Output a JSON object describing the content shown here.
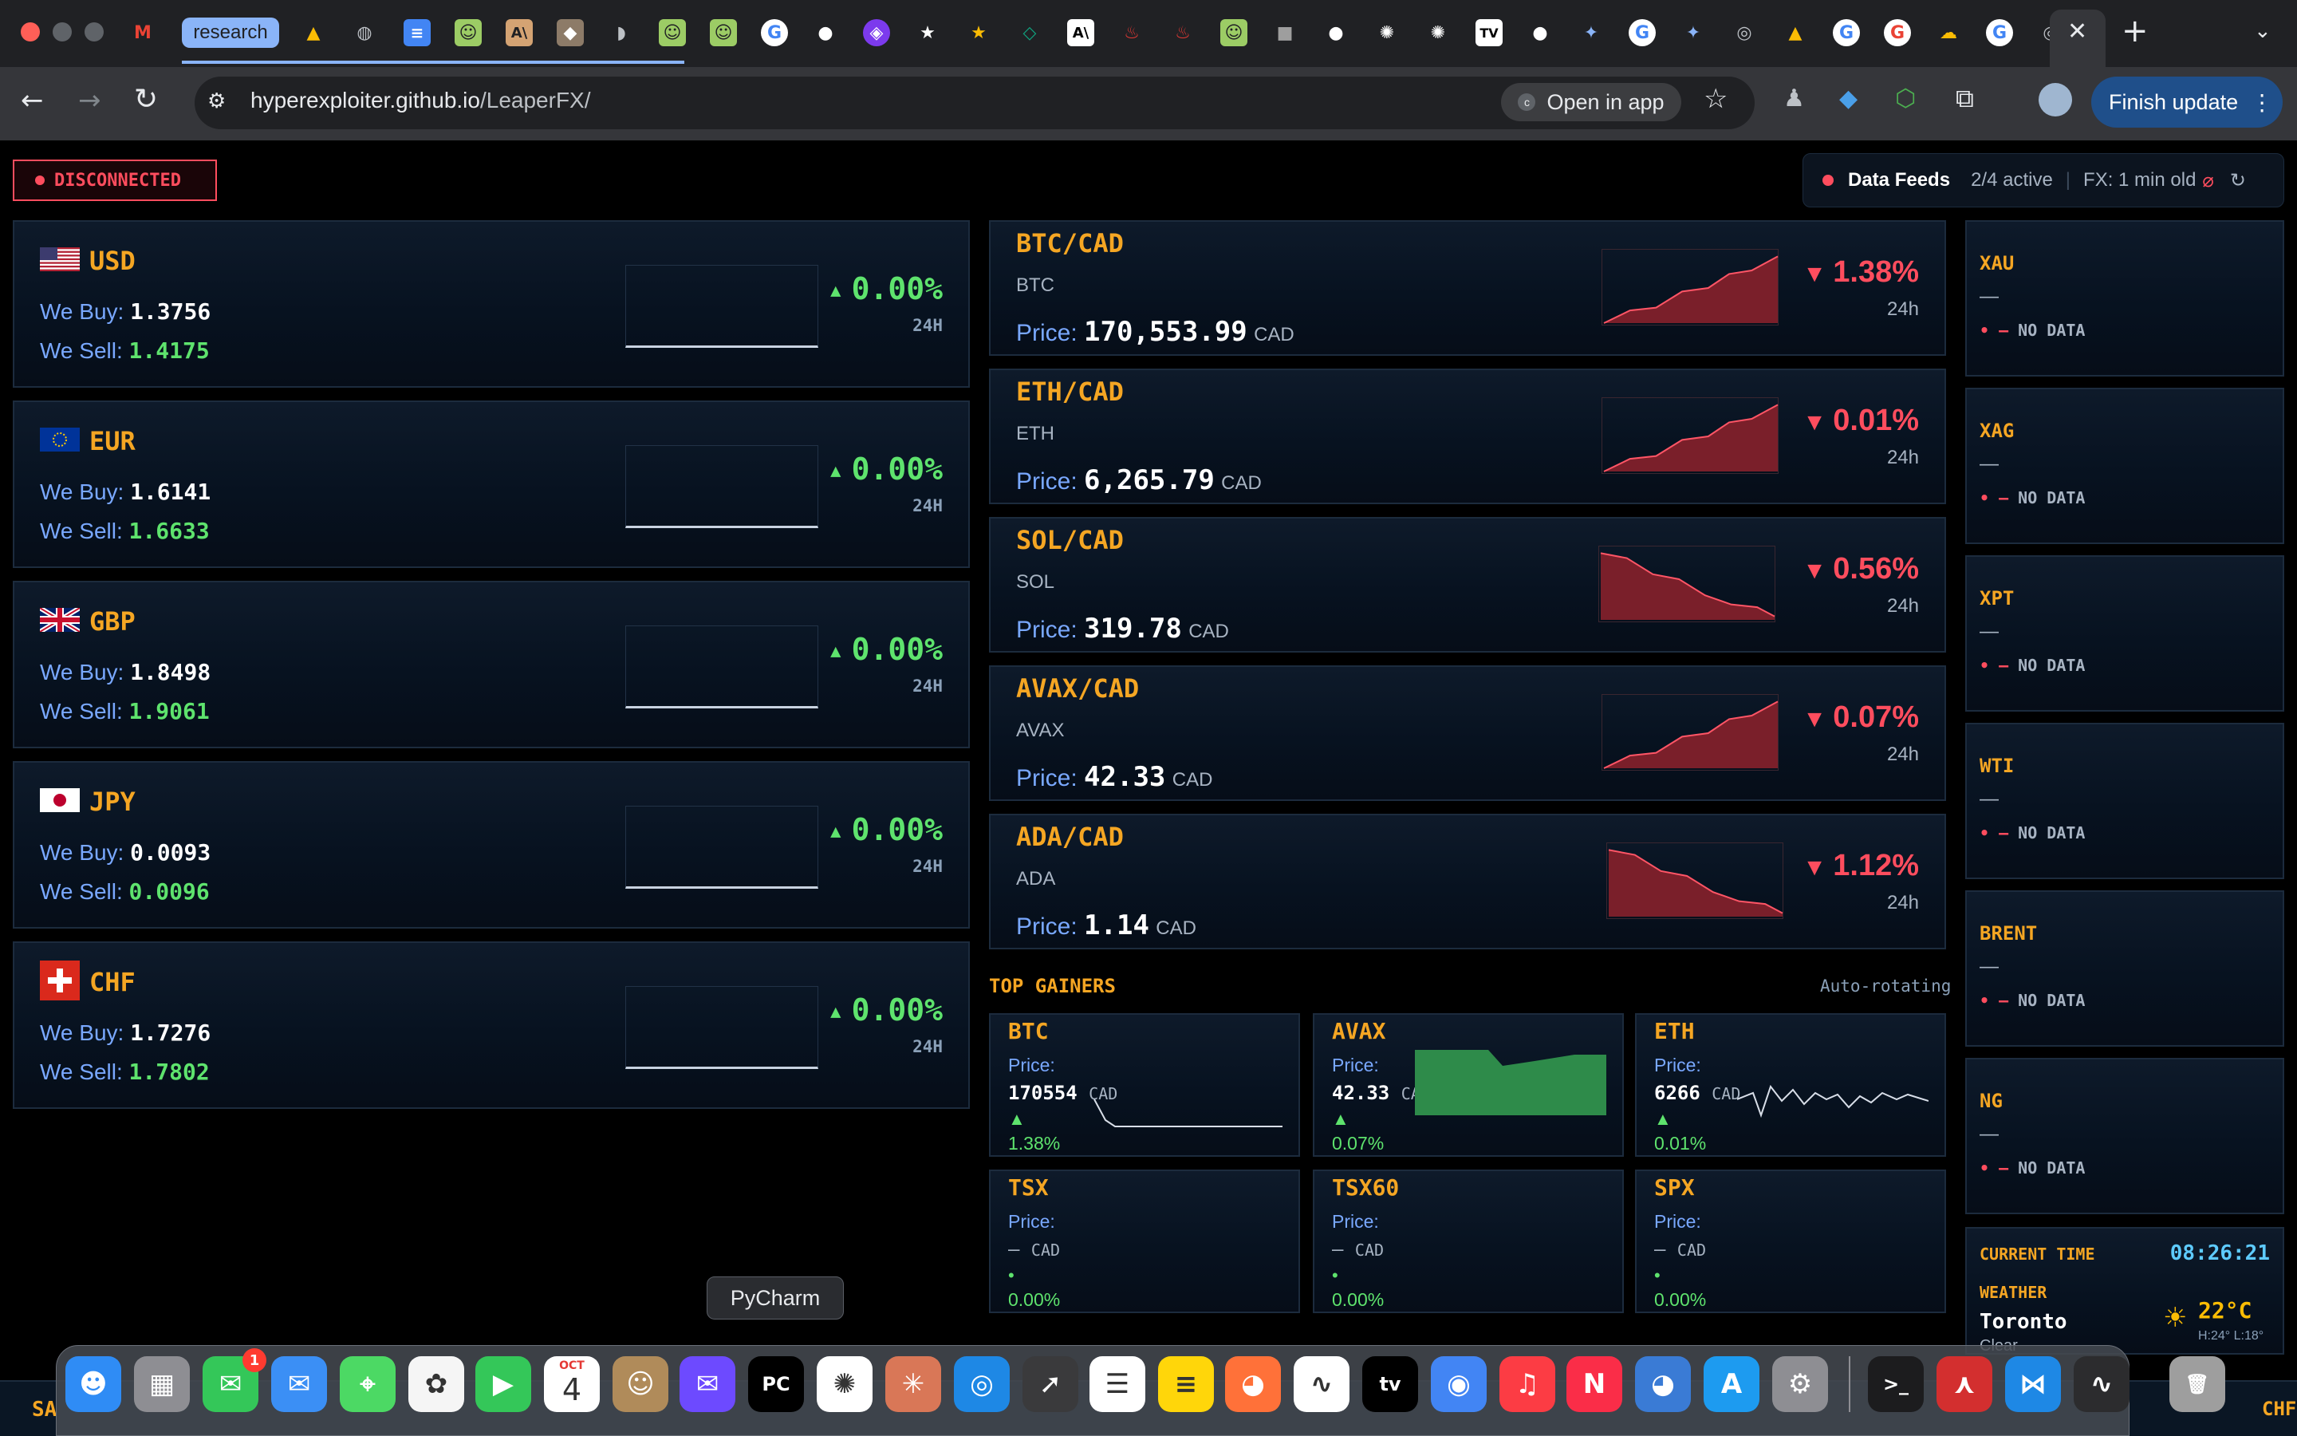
{
  "browser": {
    "tab_group_label": "research",
    "url_host": "hyperexploiter.github.io",
    "url_path": "/LeaperFX/",
    "open_in_app": "Open in app",
    "finish_update": "Finish update"
  },
  "app": {
    "status_badge": "DISCONNECTED",
    "feeds": {
      "label": "Data Feeds",
      "active": "2/4 active",
      "fx_age": "FX: 1 min old"
    },
    "currencies": [
      {
        "code": "USD",
        "buy_label": "We Buy:",
        "buy": "1.3756",
        "sell_label": "We Sell:",
        "sell": "1.4175",
        "change": "0.00%",
        "period": "24H"
      },
      {
        "code": "EUR",
        "buy_label": "We Buy:",
        "buy": "1.6141",
        "sell_label": "We Sell:",
        "sell": "1.6633",
        "change": "0.00%",
        "period": "24H"
      },
      {
        "code": "GBP",
        "buy_label": "We Buy:",
        "buy": "1.8498",
        "sell_label": "We Sell:",
        "sell": "1.9061",
        "change": "0.00%",
        "period": "24H"
      },
      {
        "code": "JPY",
        "buy_label": "We Buy:",
        "buy": "0.0093",
        "sell_label": "We Sell:",
        "sell": "0.0096",
        "change": "0.00%",
        "period": "24H"
      },
      {
        "code": "CHF",
        "buy_label": "We Buy:",
        "buy": "1.7276",
        "sell_label": "We Sell:",
        "sell": "1.7802",
        "change": "0.00%",
        "period": "24H"
      }
    ],
    "crypto": [
      {
        "pair": "BTC/CAD",
        "symbol": "BTC",
        "price_label": "Price:",
        "price": "170,553.99",
        "unit": "CAD",
        "change": "1.38%",
        "period": "24h",
        "trend": "up"
      },
      {
        "pair": "ETH/CAD",
        "symbol": "ETH",
        "price_label": "Price:",
        "price": "6,265.79",
        "unit": "CAD",
        "change": "0.01%",
        "period": "24h",
        "trend": "up"
      },
      {
        "pair": "SOL/CAD",
        "symbol": "SOL",
        "price_label": "Price:",
        "price": "319.78",
        "unit": "CAD",
        "change": "0.56%",
        "period": "24h",
        "trend": "down"
      },
      {
        "pair": "AVAX/CAD",
        "symbol": "AVAX",
        "price_label": "Price:",
        "price": "42.33",
        "unit": "CAD",
        "change": "0.07%",
        "period": "24h",
        "trend": "up"
      },
      {
        "pair": "ADA/CAD",
        "symbol": "ADA",
        "price_label": "Price:",
        "price": "1.14",
        "unit": "CAD",
        "change": "1.12%",
        "period": "24h",
        "trend": "down"
      }
    ],
    "top_gainers": {
      "title": "TOP GAINERS",
      "rotating": "Auto-rotating",
      "items": [
        {
          "code": "BTC",
          "price_label": "Price:",
          "price": "170554",
          "unit": "CAD",
          "change": "1.38%"
        },
        {
          "code": "AVAX",
          "price_label": "Price:",
          "price": "42.33",
          "unit": "CAD",
          "change": "0.07%"
        },
        {
          "code": "ETH",
          "price_label": "Price:",
          "price": "6266",
          "unit": "CAD",
          "change": "0.01%"
        },
        {
          "code": "TSX",
          "price_label": "Price:",
          "price": "—",
          "unit": "CAD",
          "change": "0.00%"
        },
        {
          "code": "TSX60",
          "price_label": "Price:",
          "price": "—",
          "unit": "CAD",
          "change": "0.00%"
        },
        {
          "code": "SPX",
          "price_label": "Price:",
          "price": "—",
          "unit": "CAD",
          "change": "0.00%"
        }
      ]
    },
    "commodities": [
      {
        "code": "XAU",
        "value": "—",
        "status": "NO DATA"
      },
      {
        "code": "XAG",
        "value": "—",
        "status": "NO DATA"
      },
      {
        "code": "XPT",
        "value": "—",
        "status": "NO DATA"
      },
      {
        "code": "WTI",
        "value": "—",
        "status": "NO DATA"
      },
      {
        "code": "BRENT",
        "value": "—",
        "status": "NO DATA"
      },
      {
        "code": "NG",
        "value": "—",
        "status": "NO DATA"
      }
    ],
    "clock": {
      "label": "CURRENT TIME",
      "time": "08:26:21",
      "weather_label": "WEATHER",
      "city": "Toronto",
      "temp": "22°C",
      "hilo": "H:24° L:18°",
      "condition": "Clear"
    },
    "ticker_left": "SA",
    "ticker_right": "CHF"
  },
  "dock": {
    "tooltip": "PyCharm",
    "calendar_month": "OCT",
    "calendar_day": "4",
    "messages_badge": "1"
  },
  "colors": {
    "accent": "#f5a623",
    "up": "#5ee36d",
    "down": "#ff4d5e",
    "label": "#79a8ff"
  }
}
